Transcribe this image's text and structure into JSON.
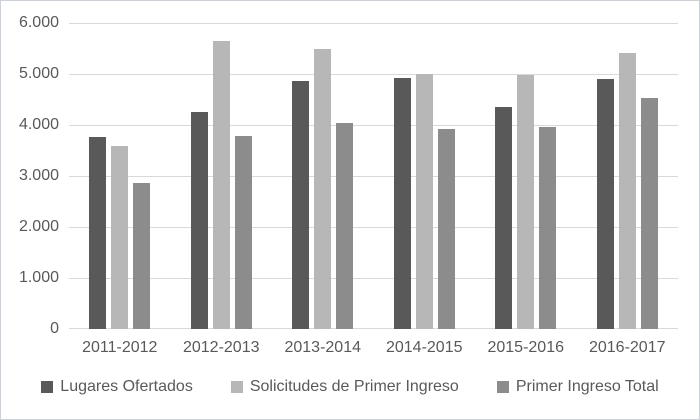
{
  "chart_data": {
    "type": "bar",
    "title": "",
    "xlabel": "",
    "ylabel": "",
    "categories": [
      "2011-2012",
      "2012-2013",
      "2013-2014",
      "2014-2015",
      "2015-2016",
      "2016-2017"
    ],
    "series": [
      {
        "name": "Lugares Ofertados",
        "color": "#595959",
        "values": [
          3760,
          4250,
          4860,
          4920,
          4360,
          4910
        ]
      },
      {
        "name": "Solicitudes de Primer Ingreso",
        "color": "#b7b7b7",
        "values": [
          3580,
          5650,
          5490,
          5010,
          4980,
          5410
        ]
      },
      {
        "name": "Primer Ingreso Total",
        "color": "#8c8c8c",
        "values": [
          2860,
          3790,
          4040,
          3930,
          3970,
          4520
        ]
      }
    ],
    "ylim": [
      0,
      6000
    ],
    "y_ticks": [
      "6.000",
      "5.000",
      "4.000",
      "3.000",
      "2.000",
      "1.000",
      "0"
    ],
    "grid": true,
    "legend_position": "bottom"
  },
  "colors": {
    "background": "#ffffff",
    "border": "#ccd2d8",
    "gridline": "#d9d9d9",
    "axis_text": "#595959"
  }
}
